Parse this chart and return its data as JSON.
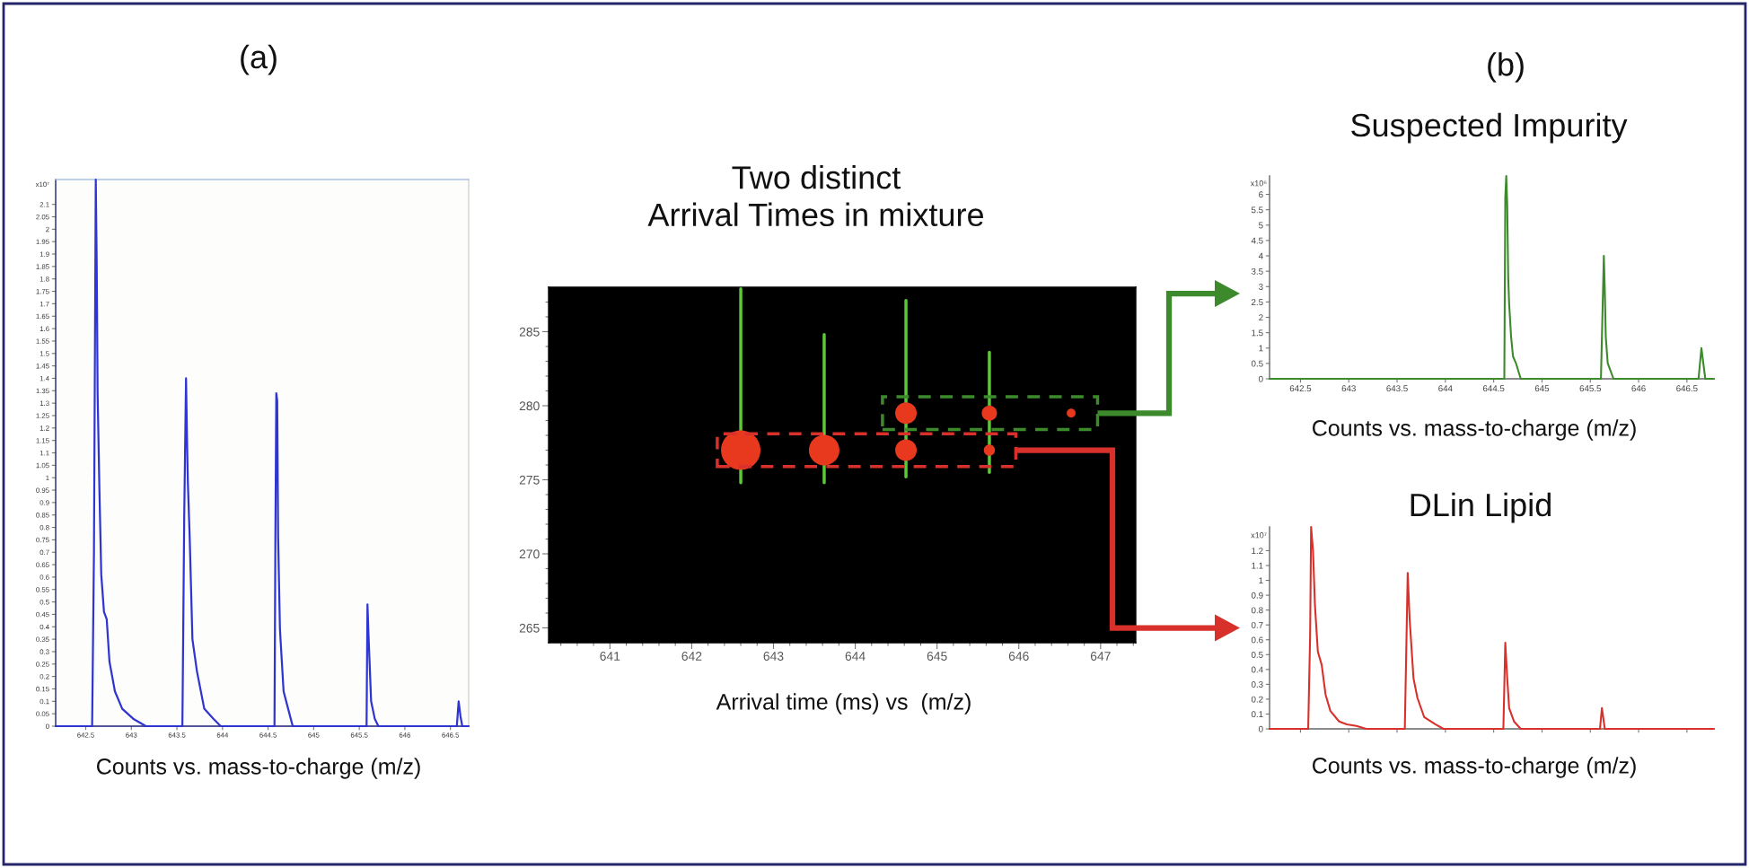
{
  "chart_data": [
    {
      "type": "line",
      "title": "(a)",
      "xlabel": "Counts vs. mass-to-charge (m/z)",
      "ylabel": "x10⁷",
      "x": [
        642.17,
        642.57,
        642.59,
        642.61,
        642.62,
        642.63,
        642.65,
        642.67,
        642.7,
        642.73,
        642.76,
        642.82,
        642.9,
        643.02,
        643.16,
        643.56,
        643.58,
        643.6,
        643.61,
        643.62,
        643.64,
        643.67,
        643.72,
        643.8,
        643.9,
        643.98,
        644.57,
        644.58,
        644.59,
        644.6,
        644.61,
        644.63,
        644.67,
        644.72,
        644.77,
        645.58,
        645.59,
        645.6,
        645.63,
        645.67,
        645.71,
        646.57,
        646.59,
        646.61,
        646.63,
        646.7
      ],
      "values": [
        0,
        0,
        0.7,
        2.2,
        1.87,
        1.34,
        0.95,
        0.61,
        0.46,
        0.43,
        0.26,
        0.14,
        0.07,
        0.03,
        0,
        0,
        0.84,
        1.4,
        1.17,
        0.98,
        0.76,
        0.35,
        0.22,
        0.07,
        0.03,
        0,
        0,
        0.76,
        1.34,
        1.31,
        0.76,
        0.39,
        0.14,
        0.07,
        0,
        0,
        0.49,
        0.38,
        0.1,
        0.03,
        0,
        0,
        0.1,
        0.04,
        0,
        0
      ],
      "color": "#2f35d0",
      "xlim": [
        642.17,
        646.7
      ],
      "ylim": [
        0,
        2.2
      ],
      "xticks": [
        642.5,
        643,
        643.5,
        644,
        644.5,
        645,
        645.5,
        646,
        646.5
      ],
      "yticks": [
        0,
        0.05,
        0.1,
        0.15,
        0.2,
        0.25,
        0.3,
        0.35,
        0.4,
        0.45,
        0.5,
        0.55,
        0.6,
        0.65,
        0.7,
        0.75,
        0.8,
        0.85,
        0.9,
        0.95,
        1,
        1.05,
        1.1,
        1.15,
        1.2,
        1.25,
        1.3,
        1.35,
        1.4,
        1.45,
        1.5,
        1.55,
        1.6,
        1.65,
        1.7,
        1.75,
        1.8,
        1.85,
        1.9,
        1.95,
        2,
        2.05,
        2.1
      ]
    },
    {
      "type": "bubble",
      "title": "Two distinct\nArrival Times in mixture",
      "xlabel": "Arrival time (ms) vs  (m/z)",
      "series": [
        {
          "type": "line",
          "color": "#5cc83a",
          "x": [
            642.6,
            642.6
          ],
          "values": [
            274.8,
            287.9
          ]
        },
        {
          "type": "line",
          "color": "#5cc83a",
          "x": [
            643.62,
            643.62
          ],
          "values": [
            274.8,
            284.8
          ]
        },
        {
          "type": "line",
          "color": "#5cc83a",
          "x": [
            644.62,
            644.62
          ],
          "values": [
            275.2,
            287.1
          ]
        },
        {
          "type": "line",
          "color": "#5cc83a",
          "x": [
            645.64,
            645.64
          ],
          "values": [
            275.5,
            283.6
          ]
        },
        {
          "type": "bubble",
          "color": "#e8391f",
          "x": [
            642.6,
            643.62,
            644.62,
            645.64
          ],
          "values": [
            277,
            277,
            277,
            277
          ],
          "sizes": [
            1,
            0.6,
            0.3,
            0.08
          ]
        },
        {
          "type": "bubble",
          "color": "#e8391f",
          "x": [
            644.62,
            645.64,
            646.64
          ],
          "values": [
            279.5,
            279.5,
            279.5
          ],
          "sizes": [
            0.3,
            0.15,
            0.05
          ]
        }
      ],
      "xlim": [
        640.25,
        647.43
      ],
      "ylim": [
        264,
        288
      ],
      "xticks": [
        {
          "value": 640.4,
          "label": null
        },
        {
          "value": 640.6,
          "label": null
        },
        {
          "value": 640.8,
          "label": null
        },
        641,
        {
          "value": 641.2,
          "label": null
        },
        {
          "value": 641.4,
          "label": null
        },
        {
          "value": 641.6,
          "label": null
        },
        {
          "value": 641.8,
          "label": null
        },
        642,
        {
          "value": 642.2,
          "label": null
        },
        {
          "value": 642.4,
          "label": null
        },
        {
          "value": 642.6,
          "label": null
        },
        {
          "value": 642.8,
          "label": null
        },
        643,
        {
          "value": 643.2,
          "label": null
        },
        {
          "value": 643.4,
          "label": null
        },
        {
          "value": 643.6,
          "label": null
        },
        {
          "value": 643.8,
          "label": null
        },
        644,
        {
          "value": 644.2,
          "label": null
        },
        {
          "value": 644.4,
          "label": null
        },
        {
          "value": 644.6,
          "label": null
        },
        {
          "value": 644.8,
          "label": null
        },
        645,
        {
          "value": 645.2,
          "label": null
        },
        {
          "value": 645.4,
          "label": null
        },
        {
          "value": 645.6,
          "label": null
        },
        {
          "value": 645.8,
          "label": null
        },
        646,
        {
          "value": 646.2,
          "label": null
        },
        {
          "value": 646.4,
          "label": null
        },
        {
          "value": 646.6,
          "label": null
        },
        {
          "value": 646.8,
          "label": null
        },
        647,
        {
          "value": 647.2,
          "label": null
        },
        {
          "value": 647.4,
          "label": null
        }
      ],
      "yticks": [
        265,
        {
          "value": 266,
          "label": null
        },
        {
          "value": 267,
          "label": null
        },
        {
          "value": 268,
          "label": null
        },
        {
          "value": 269,
          "label": null
        },
        270,
        {
          "value": 271,
          "label": null
        },
        {
          "value": 272,
          "label": null
        },
        {
          "value": 273,
          "label": null
        },
        {
          "value": 274,
          "label": null
        },
        275,
        {
          "value": 276,
          "label": null
        },
        {
          "value": 277,
          "label": null
        },
        {
          "value": 278,
          "label": null
        },
        {
          "value": 279,
          "label": null
        },
        280,
        {
          "value": 281,
          "label": null
        },
        {
          "value": 282,
          "label": null
        },
        {
          "value": 283,
          "label": null
        },
        {
          "value": 284,
          "label": null
        },
        285,
        {
          "value": 286,
          "label": null
        },
        {
          "value": 287,
          "label": null
        }
      ]
    },
    {
      "type": "line",
      "title": "Suspected Impurity",
      "annotations": [
        "(b)"
      ],
      "xlabel": "Counts vs. mass-to-charge (m/z)",
      "ylabel": "x10⁶",
      "x": [
        642.18,
        644.61,
        644.62,
        644.63,
        644.64,
        644.65,
        644.66,
        644.68,
        644.7,
        644.73,
        644.78,
        645.61,
        645.64,
        645.65,
        645.66,
        645.68,
        645.74,
        646.62,
        646.65,
        646.69,
        646.78
      ],
      "values": [
        0,
        0,
        5.9,
        6.6,
        5.66,
        3.3,
        2.44,
        1.37,
        0.73,
        0.51,
        0,
        0,
        4.0,
        2.87,
        1.37,
        0.51,
        0,
        0,
        1.0,
        0,
        0
      ],
      "color": "#3d8a2c",
      "xlim": [
        642.18,
        646.78
      ],
      "ylim": [
        0,
        6.6
      ],
      "xticks": [
        642.5,
        643,
        643.5,
        644,
        644.5,
        645,
        645.5,
        646,
        646.5
      ],
      "yticks": [
        0,
        0.5,
        1,
        1.5,
        2,
        2.5,
        3,
        3.5,
        4,
        4.5,
        5,
        5.5,
        6
      ]
    },
    {
      "type": "line",
      "title": "DLin Lipid",
      "xlabel": "Counts vs. mass-to-charge (m/z)",
      "ylabel": "x10⁷",
      "x": [
        642.18,
        642.58,
        642.6,
        642.61,
        642.63,
        642.65,
        642.68,
        642.72,
        642.76,
        642.81,
        642.9,
        642.98,
        643.08,
        643.18,
        643.58,
        643.61,
        643.63,
        643.67,
        643.71,
        643.78,
        643.9,
        643.98,
        644.6,
        644.62,
        644.64,
        644.66,
        644.71,
        644.78,
        645.6,
        645.62,
        645.65,
        646.78
      ],
      "values": [
        0,
        0,
        0.63,
        1.36,
        1.2,
        0.83,
        0.52,
        0.43,
        0.23,
        0.12,
        0.05,
        0.03,
        0.02,
        0,
        0,
        1.05,
        0.74,
        0.34,
        0.21,
        0.08,
        0.03,
        0,
        0,
        0.58,
        0.34,
        0.14,
        0.05,
        0,
        0,
        0.14,
        0,
        0
      ],
      "color": "#d8302a",
      "xlim": [
        642.18,
        646.78
      ],
      "ylim": [
        0,
        1.36
      ],
      "xticks": [
        {
          "value": 642.5,
          "label": null
        },
        {
          "value": 643,
          "label": null
        },
        {
          "value": 643.5,
          "label": null
        },
        {
          "value": 644,
          "label": null
        },
        {
          "value": 644.5,
          "label": null
        },
        {
          "value": 645,
          "label": null
        },
        {
          "value": 645.5,
          "label": null
        },
        {
          "value": 646,
          "label": null
        },
        {
          "value": 646.5,
          "label": null
        }
      ],
      "yticks": [
        0,
        0.1,
        0.2,
        0.3,
        0.4,
        0.5,
        0.6,
        0.7,
        0.8,
        0.9,
        1,
        1.1,
        1.2
      ],
      "tick_labels": "y"
    }
  ]
}
